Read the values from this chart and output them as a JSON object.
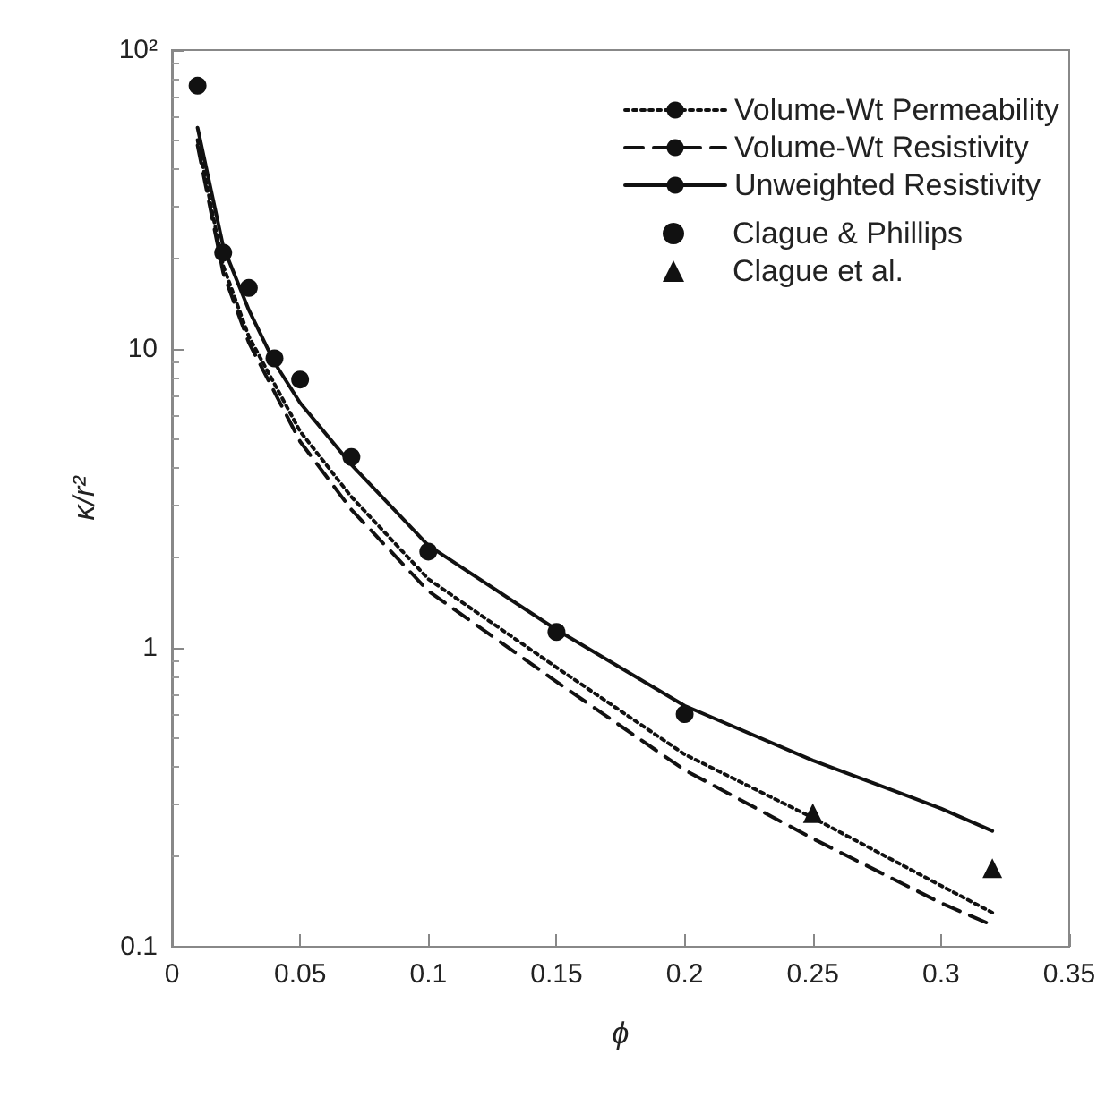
{
  "chart_data": {
    "type": "line",
    "xlabel": "ϕ",
    "ylabel": "κ/r²",
    "log": "y",
    "xlim": [
      0,
      0.35
    ],
    "ylim": [
      0.1,
      100
    ],
    "xticks": [
      0,
      0.05,
      0.1,
      0.15,
      0.2,
      0.25,
      0.3,
      0.35
    ],
    "yticks": [
      {
        "value": 0.1,
        "label": "0.1"
      },
      {
        "value": 1,
        "label": "1"
      },
      {
        "value": 10,
        "label": "10"
      },
      {
        "value": 100,
        "label": "10²"
      }
    ],
    "grid": false,
    "legend": "top right",
    "series": [
      {
        "name": "Volume-Wt Permeability",
        "color": "#111111",
        "line_style": "dotted",
        "marker": "none",
        "x": [
          0.01,
          0.02,
          0.03,
          0.05,
          0.07,
          0.1,
          0.15,
          0.2,
          0.25,
          0.3,
          0.32
        ],
        "values": [
          50,
          19,
          11,
          5.3,
          3.2,
          1.7,
          0.86,
          0.44,
          0.27,
          0.16,
          0.13
        ]
      },
      {
        "name": "Volume-Wt Resistivity",
        "color": "#111111",
        "line_style": "dashed",
        "marker": "none",
        "x": [
          0.01,
          0.02,
          0.03,
          0.05,
          0.07,
          0.1,
          0.15,
          0.2,
          0.25,
          0.3,
          0.32
        ],
        "values": [
          48,
          18,
          10.5,
          4.9,
          2.9,
          1.55,
          0.77,
          0.39,
          0.23,
          0.14,
          0.118
        ]
      },
      {
        "name": "Unweighted Resistivity",
        "color": "#111111",
        "line_style": "solid",
        "marker": "none",
        "x": [
          0.01,
          0.02,
          0.03,
          0.04,
          0.05,
          0.07,
          0.1,
          0.15,
          0.2,
          0.25,
          0.3,
          0.32
        ],
        "values": [
          55,
          22,
          13.5,
          9,
          6.6,
          4.1,
          2.2,
          1.15,
          0.64,
          0.42,
          0.29,
          0.244
        ]
      },
      {
        "name": "Clague & Phillips",
        "type": "scatter",
        "color": "#111111",
        "marker": "circle",
        "x": [
          0.01,
          0.02,
          0.03,
          0.04,
          0.05,
          0.07,
          0.1,
          0.15,
          0.2
        ],
        "values": [
          76,
          21,
          16,
          9.3,
          7.9,
          4.35,
          2.1,
          1.13,
          0.6
        ]
      },
      {
        "name": "Clague et al.",
        "type": "scatter",
        "color": "#111111",
        "marker": "triangle",
        "x": [
          0.25,
          0.32
        ],
        "values": [
          0.28,
          0.183
        ]
      }
    ]
  }
}
